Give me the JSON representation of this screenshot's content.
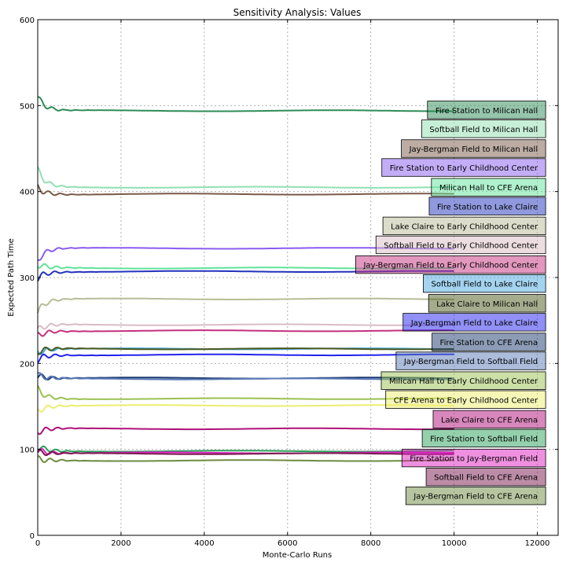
{
  "chart_data": {
    "type": "line",
    "title": "Sensitivity Analysis: Values",
    "xlabel": "Monte-Carlo Runs",
    "ylabel": "Expected Path Time",
    "xlim": [
      0,
      12500
    ],
    "ylim": [
      0,
      600
    ],
    "xticks": [
      0,
      2000,
      4000,
      6000,
      8000,
      10000,
      12000
    ],
    "yticks": [
      0,
      100,
      200,
      300,
      400,
      500,
      600
    ],
    "grid": true,
    "legend_placement": "right (stacked labels)",
    "series": [
      {
        "name": "Fire Station to Milican Hall",
        "color": "#2e8b57",
        "x_end": 10000,
        "start": 510,
        "value": 494
      },
      {
        "name": "Softball Field to Milican Hall",
        "color": "#90e0b0",
        "x_end": 10000,
        "start": 425,
        "value": 405
      },
      {
        "name": "Jay-Bergman Field to Milican Hall",
        "color": "#7a5a48",
        "x_end": 10000,
        "start": 405,
        "value": 397
      },
      {
        "name": "Fire Station to Early Childhood Center",
        "color": "#8a5cf0",
        "x_end": 10000,
        "start": 320,
        "value": 334
      },
      {
        "name": "Milican Hall to CFE Arena",
        "color": "#5fe39a",
        "x_end": 10000,
        "start": 315,
        "value": 311
      },
      {
        "name": "Fire Station to Lake Claire",
        "color": "#2233bb",
        "x_end": 10000,
        "start": 300,
        "value": 307
      },
      {
        "name": "Lake Claire to Early Childhood Center",
        "color": "#b8bc96",
        "x_end": 10000,
        "start": 260,
        "value": 275
      },
      {
        "name": "Softball Field to Early Childhood Center",
        "color": "#d9bcc4",
        "x_end": 10000,
        "start": 238,
        "value": 245
      },
      {
        "name": "Jay-Bergman Field to Early Childhood Center",
        "color": "#c4307e",
        "x_end": 10000,
        "start": 232,
        "value": 238
      },
      {
        "name": "Softball Field to Lake Claire",
        "color": "#4aa8e0",
        "x_end": 10000,
        "start": 213,
        "value": 217
      },
      {
        "name": "Lake Claire to Milican Hall",
        "color": "#4c5a1c",
        "x_end": 10000,
        "start": 213,
        "value": 217
      },
      {
        "name": "Jay-Bergman Field to Lake Claire",
        "color": "#2222ee",
        "x_end": 10000,
        "start": 205,
        "value": 210
      },
      {
        "name": "Fire Station to CFE Arena",
        "color": "#1c3a6e",
        "x_end": 10000,
        "start": 186,
        "value": 183
      },
      {
        "name": "Jay-Bergman Field to Softball Field",
        "color": "#5a7ab8",
        "x_end": 10000,
        "start": 186,
        "value": 182
      },
      {
        "name": "Milican Hall to Early Childhood Center",
        "color": "#9ac050",
        "x_end": 10000,
        "start": 170,
        "value": 159
      },
      {
        "name": "CFE Arena to Early Childhood Center",
        "color": "#eded70",
        "x_end": 10000,
        "start": 145,
        "value": 151
      },
      {
        "name": "Lake Claire to CFE Arena",
        "color": "#b0107a",
        "x_end": 10000,
        "start": 120,
        "value": 124
      },
      {
        "name": "Fire Station to Softball Field",
        "color": "#2aa25a",
        "x_end": 10000,
        "start": 104,
        "value": 98
      },
      {
        "name": "Fire Station to Jay-Bergman Field",
        "color": "#dd22c0",
        "x_end": 10000,
        "start": 100,
        "value": 96
      },
      {
        "name": "Softball Field to CFE Arena",
        "color": "#7a1a50",
        "x_end": 10000,
        "start": 96,
        "value": 95
      },
      {
        "name": "Jay-Bergman Field to CFE Arena",
        "color": "#6e8a40",
        "x_end": 10000,
        "start": 88,
        "value": 87
      }
    ],
    "legend_boxes": [
      {
        "label": "Fire Station to Milican Hall",
        "color": "#2e8b57",
        "y": 495
      },
      {
        "label": "Softball Field to Milican Hall",
        "color": "#90e0b0",
        "y": 473
      },
      {
        "label": "Jay-Bergman Field to Milican Hall",
        "color": "#7a5a48",
        "y": 450
      },
      {
        "label": "Fire Station to Early Childhood Center",
        "color": "#8a5cf0",
        "y": 428
      },
      {
        "label": "Milican Hall to CFE Arena",
        "color": "#5fe39a",
        "y": 405
      },
      {
        "label": "Fire Station to Lake Claire",
        "color": "#2233bb",
        "y": 383
      },
      {
        "label": "Lake Claire to Early Childhood Center",
        "color": "#b8bc96",
        "y": 360
      },
      {
        "label": "Softball Field to Early Childhood Center",
        "color": "#d9bcc4",
        "y": 338
      },
      {
        "label": "Jay-Bergman Field to Early Childhood Center",
        "color": "#c4307e",
        "y": 315
      },
      {
        "label": "Softball Field to Lake Claire",
        "color": "#4aa8e0",
        "y": 293
      },
      {
        "label": "Lake Claire to Milican Hall",
        "color": "#4c5a1c",
        "y": 270
      },
      {
        "label": "Jay-Bergman Field to Lake Claire",
        "color": "#2222ee",
        "y": 248
      },
      {
        "label": "Fire Station to CFE Arena",
        "color": "#1c3a6e",
        "y": 225
      },
      {
        "label": "Jay-Bergman Field to Softball Field",
        "color": "#5a7ab8",
        "y": 203
      },
      {
        "label": "Milican Hall to Early Childhood Center",
        "color": "#9ac050",
        "y": 180
      },
      {
        "label": "CFE Arena to Early Childhood Center",
        "color": "#eded70",
        "y": 158
      },
      {
        "label": "Lake Claire to CFE Arena",
        "color": "#b0107a",
        "y": 135
      },
      {
        "label": "Fire Station to Softball Field",
        "color": "#2aa25a",
        "y": 113
      },
      {
        "label": "Fire Station to Jay-Bergman Field",
        "color": "#dd22c0",
        "y": 90
      },
      {
        "label": "Softball Field to CFE Arena",
        "color": "#7a1a50",
        "y": 68
      },
      {
        "label": "Jay-Bergman Field to CFE Arena",
        "color": "#6e8a40",
        "y": 46
      }
    ]
  }
}
